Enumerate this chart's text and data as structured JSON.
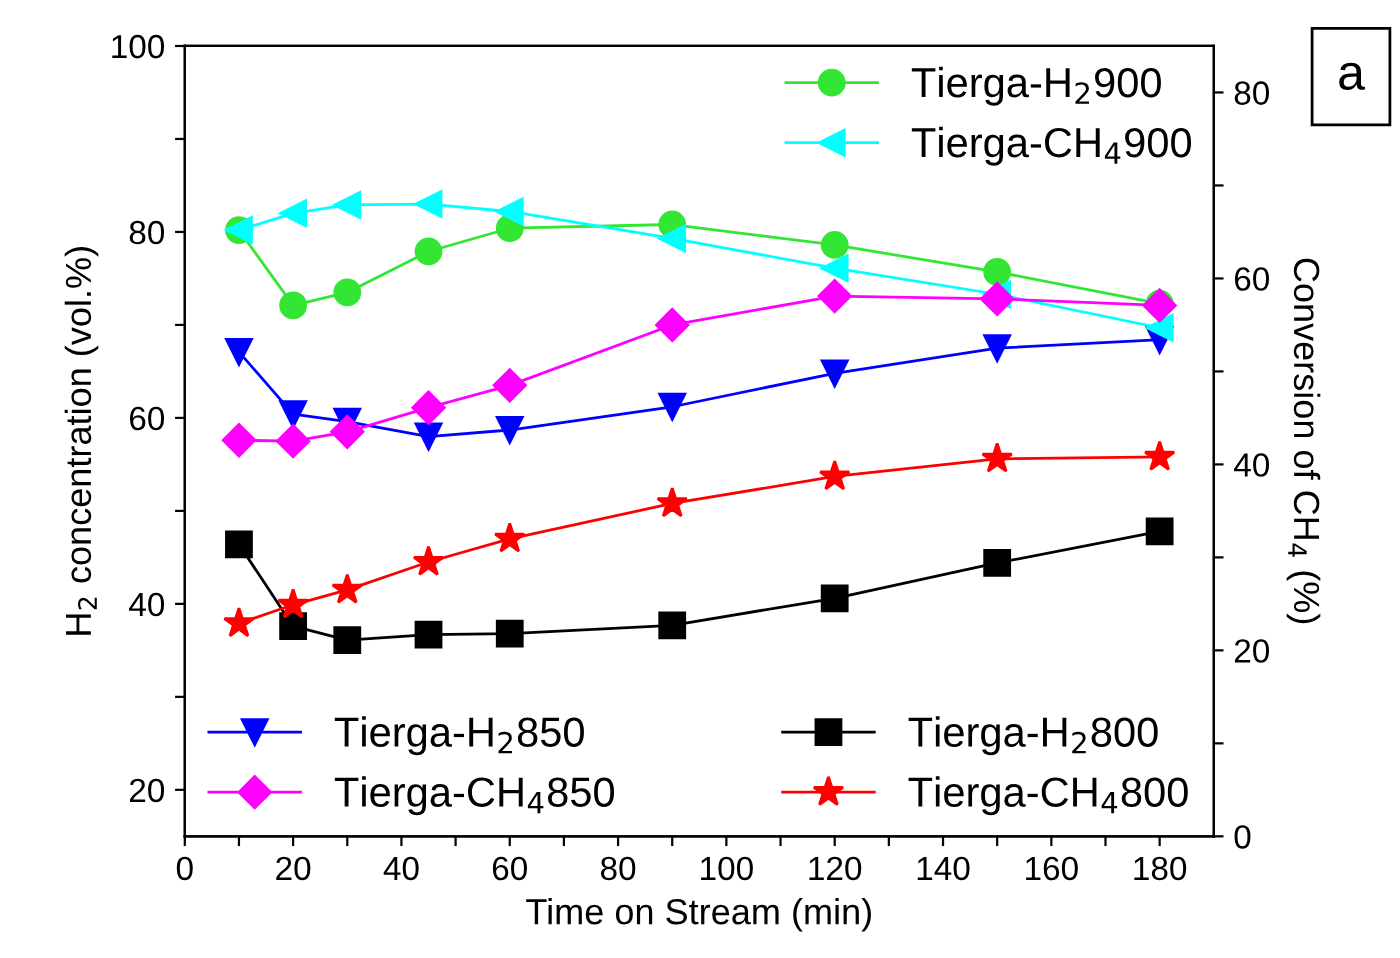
{
  "chart_data": {
    "type": "line",
    "xlabel": "Time on Stream (min)",
    "ylabel": "H$_{2}$ concentration (vol.%)",
    "y2label": "Conversion of CH$_{4}$ (%)",
    "x": [
      10,
      20,
      30,
      45,
      60,
      90,
      120,
      150,
      180
    ],
    "xlim": [
      0,
      190
    ],
    "xticks": [
      0,
      {
        "value": 10,
        "label": null
      },
      20,
      {
        "value": 30,
        "label": null
      },
      40,
      {
        "value": 50,
        "label": null
      },
      60,
      {
        "value": 70,
        "label": null
      },
      80,
      {
        "value": 90,
        "label": null
      },
      100,
      {
        "value": 110,
        "label": null
      },
      120,
      {
        "value": 130,
        "label": null
      },
      140,
      {
        "value": 150,
        "label": null
      },
      160,
      {
        "value": 170,
        "label": null
      },
      180
    ],
    "ylim": [
      15,
      100
    ],
    "yticks": [
      20,
      {
        "value": 30,
        "label": null
      },
      40,
      {
        "value": 50,
        "label": null
      },
      60,
      {
        "value": 70,
        "label": null
      },
      80,
      {
        "value": 90,
        "label": null
      },
      100
    ],
    "y2lim": [
      0,
      85
    ],
    "y2ticks": [
      0,
      {
        "value": 10,
        "label": null
      },
      20,
      {
        "value": 30,
        "label": null
      },
      40,
      {
        "value": 50,
        "label": null
      },
      60,
      {
        "value": 70,
        "label": null
      },
      80
    ],
    "grid": false,
    "legend": "top right",
    "line_style": "solid",
    "annotations": [
      "a"
    ],
    "series": [
      {
        "name": "Tierga-H$_{2}$900",
        "color": "#33e633",
        "marker": "circle",
        "axis": "y",
        "values": [
          80.2,
          72.1,
          73.5,
          77.9,
          80.4,
          80.8,
          78.6,
          75.7,
          72.3
        ]
      },
      {
        "name": "Tierga-CH$_{4}$900",
        "color": "#00ffff",
        "marker": "triangle-left",
        "axis": "y2",
        "values": [
          65.2,
          67.0,
          67.9,
          68.0,
          67.2,
          64.3,
          61.1,
          58.3,
          54.7
        ]
      },
      {
        "name": "Tierga-H$_{2}$850",
        "color": "#0000ff",
        "marker": "triangle-down",
        "axis": "y",
        "values": [
          67.1,
          60.4,
          59.6,
          58.0,
          58.7,
          61.2,
          64.8,
          67.5,
          68.4
        ]
      },
      {
        "name": "Tierga-CH$_{4}$850",
        "color": "#ff00ff",
        "marker": "diamond",
        "axis": "y2",
        "values": [
          42.6,
          42.5,
          43.5,
          46.1,
          48.5,
          55.0,
          58.1,
          57.8,
          57.1
        ]
      },
      {
        "name": "Tierga-H$_{2}$800",
        "color": "#000000",
        "marker": "square",
        "axis": "y",
        "values": [
          46.4,
          37.6,
          36.1,
          36.7,
          36.8,
          37.7,
          40.6,
          44.4,
          47.8
        ]
      },
      {
        "name": "Tierga-CH$_{4}$800",
        "color": "#ff0000",
        "marker": "star",
        "axis": "y2",
        "values": [
          22.9,
          24.9,
          26.5,
          29.5,
          32.0,
          35.8,
          38.7,
          40.6,
          40.8
        ]
      }
    ]
  }
}
